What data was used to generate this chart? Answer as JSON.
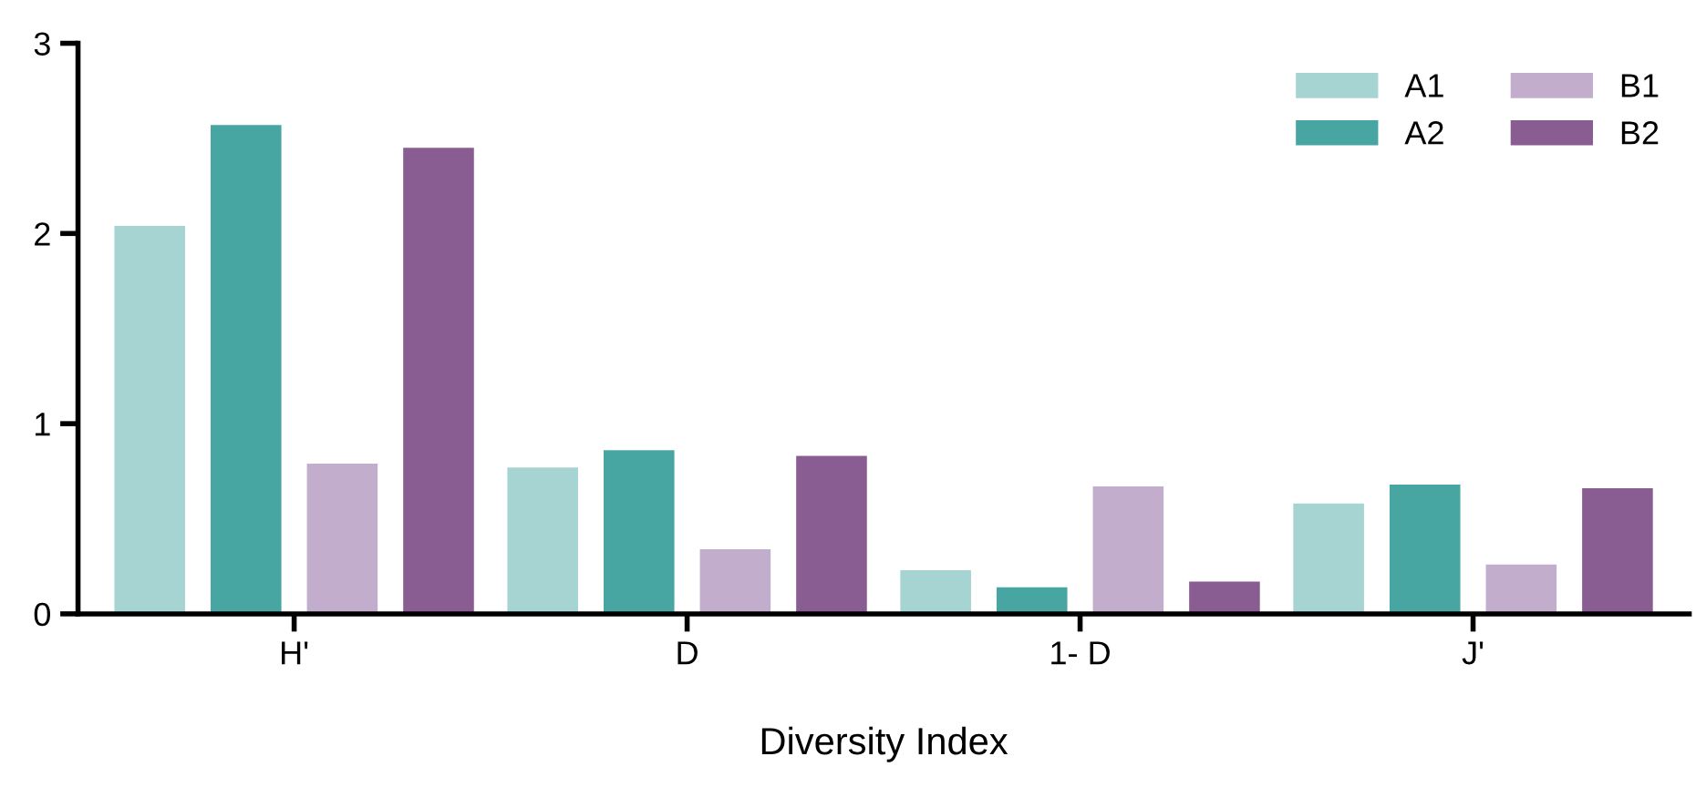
{
  "chart_data": {
    "type": "bar",
    "xlabel": "Diversity Index",
    "categories": [
      "H'",
      "D",
      "1- D",
      "J'"
    ],
    "series": [
      {
        "name": "A1",
        "color": "#a6d4d2",
        "values": [
          2.04,
          0.77,
          0.23,
          0.58
        ]
      },
      {
        "name": "A2",
        "color": "#48a6a2",
        "values": [
          2.57,
          0.86,
          0.14,
          0.68
        ]
      },
      {
        "name": "B1",
        "color": "#c3adcc",
        "values": [
          0.79,
          0.34,
          0.67,
          0.26
        ]
      },
      {
        "name": "B2",
        "color": "#895d92",
        "values": [
          2.45,
          0.83,
          0.17,
          0.66
        ]
      }
    ],
    "ylim": [
      0,
      3
    ],
    "yticks": [
      0,
      1,
      2,
      3
    ],
    "grid": false,
    "legend": "top right"
  }
}
